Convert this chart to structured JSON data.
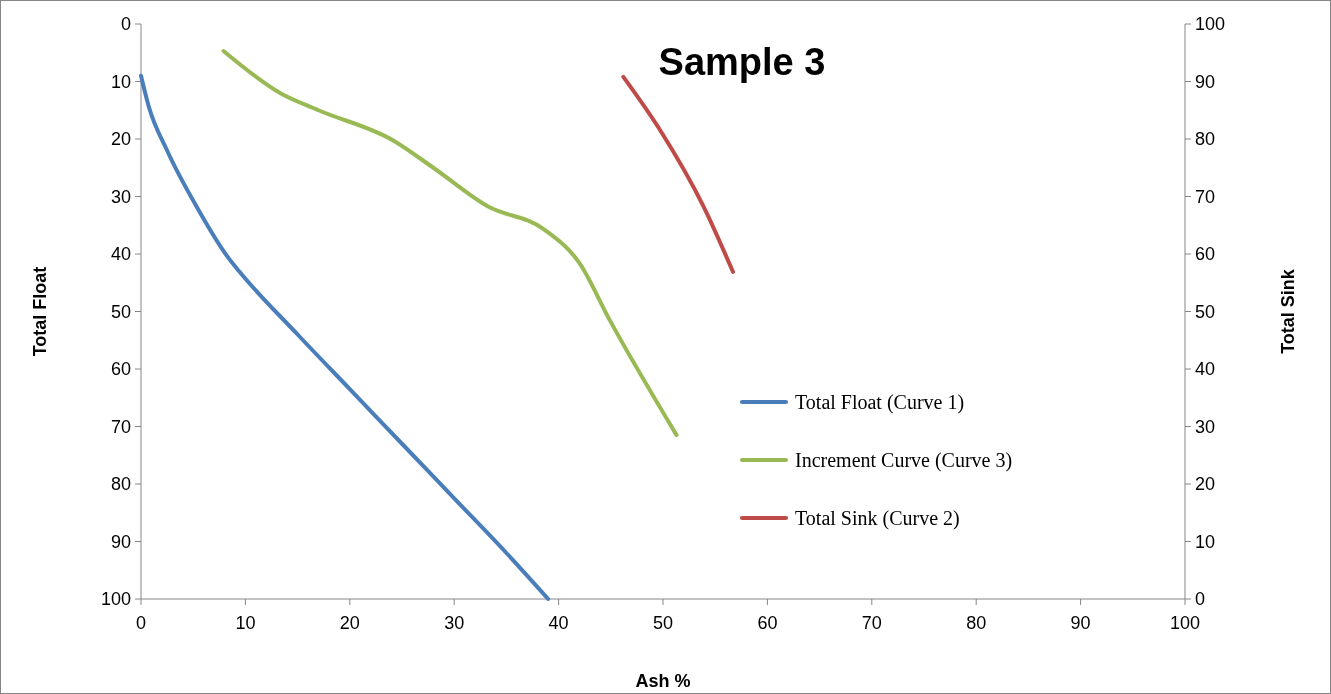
{
  "chart_data": {
    "type": "line",
    "title": "Sample 3",
    "xlabel": "Ash %",
    "ylabel": "Total Float",
    "y2label": "Total Sink",
    "xlim": [
      0,
      100
    ],
    "xticks": [
      0,
      10,
      20,
      30,
      40,
      50,
      60,
      70,
      80,
      90,
      100
    ],
    "ylim": [
      100,
      0
    ],
    "yticks": [
      0,
      10,
      20,
      30,
      40,
      50,
      60,
      70,
      80,
      90,
      100
    ],
    "y2lim": [
      0,
      100
    ],
    "y2ticks": [
      0,
      10,
      20,
      30,
      40,
      50,
      60,
      70,
      80,
      90,
      100
    ],
    "legend": "right",
    "grid": false,
    "marker": "none",
    "line_style": "solid",
    "series": [
      {
        "name": "Total Float (Curve 1)",
        "color": "#4a7ebb",
        "x": [
          0,
          0.75,
          2.5,
          5.4,
          8.3,
          9.4,
          15,
          20,
          25,
          30,
          35,
          39
        ],
        "values": [
          9,
          14.4,
          22,
          32,
          40.5,
          43,
          54,
          63.5,
          73,
          82.5,
          92,
          100
        ]
      },
      {
        "name": "Increment Curve (Curve 3)",
        "color": "#98b954",
        "x": [
          7.9,
          13.4,
          17,
          24.2,
          28,
          33.2,
          38.6,
          42,
          44.9,
          51.3
        ],
        "values": [
          4.7,
          12.1,
          15,
          20.3,
          25,
          31.7,
          35.7,
          41.6,
          51.5,
          71.5
        ]
      },
      {
        "name": "Total Sink (Curve 2)",
        "color": "#be4b48",
        "axis": "y2",
        "x": [
          46.2,
          49.7,
          53.9,
          56.7
        ],
        "values": [
          90.8,
          81.6,
          68.2,
          56.9
        ]
      }
    ]
  }
}
